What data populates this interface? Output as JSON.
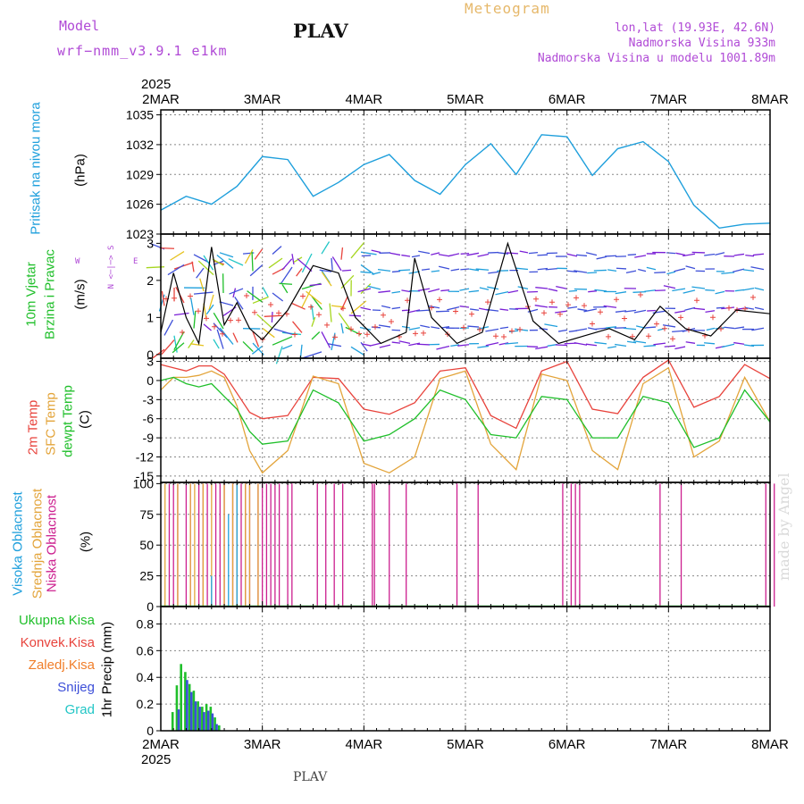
{
  "header": {
    "model_label": "Model",
    "model_name": "wrf−nmm_v3.9.1  e1km",
    "station": "PLAV",
    "product": "Meteogram",
    "lonlat": "lon,lat (19.93E, 42.6N)",
    "elevation": "Nadmorska Visina 933m",
    "model_elevation": "Nadmorska Visina u modelu 1001.89m",
    "footer_station": "PLAV",
    "credit": "made by Angel",
    "year": "2025"
  },
  "colors": {
    "pressure": "#1e9fdc",
    "temp2m": "#e8433c",
    "sfc": "#e3a43a",
    "dewpt": "#1fbf2a",
    "wind_title": "#1fbf2a",
    "low_cloud": "#cc1f8f",
    "mid_cloud": "#e3a43a",
    "high_cloud": "#1e9fdc",
    "total_precip": "#1fbf2a",
    "conv_precip": "#e8433c",
    "frz_precip": "#f07e2a",
    "snow": "#3d4fd8",
    "hail": "#22c6c6"
  },
  "axis_x": {
    "top_labels": [
      "2MAR",
      "3MAR",
      "4MAR",
      "5MAR",
      "6MAR",
      "7MAR",
      "8MAR"
    ],
    "bottom_labels": [
      "2MAR",
      "3MAR",
      "4MAR",
      "5MAR",
      "6MAR",
      "7MAR",
      "8MAR"
    ]
  },
  "panel_labels": {
    "pressure": {
      "title": "Pritisak na nivou mora",
      "unit": "(hPa)"
    },
    "wind": {
      "title1": "10m Vjetar",
      "title2": "Brzina i Pravac",
      "unit": "(m/s)",
      "compass_ns": "N <─|─> S",
      "compass_w": "W",
      "compass_e": "E"
    },
    "temp": {
      "t1": "2m Temp",
      "t2": "SFC Temp",
      "t3": "dewpt Temp",
      "unit": "(C)"
    },
    "cloud": {
      "c1": "Visoka Oblacnost",
      "c2": "Srednja Oblacnost",
      "c3": "Niska Oblacnost",
      "unit": "(%)"
    },
    "precip": {
      "p1": "Ukupna Kisa",
      "p2": "Konvek.Kisa",
      "p3": "Zaledj.Kisa",
      "p4": "Snijeg",
      "p5": "Grad",
      "unit": "1hr Precip (mm)"
    }
  },
  "chart_data": [
    {
      "type": "line",
      "name": "pressure",
      "ylim": [
        1023,
        1035.5
      ],
      "yticks": [
        1023,
        1026,
        1029,
        1032,
        1035
      ],
      "x_unit": "hours from 2MAR 00",
      "x": [
        0,
        6,
        12,
        18,
        24,
        30,
        36,
        42,
        48,
        54,
        60,
        66,
        72,
        78,
        84,
        90,
        96,
        102,
        108,
        114,
        120,
        126,
        132,
        138,
        144
      ],
      "values": [
        1025.4,
        1026.8,
        1026.0,
        1027.8,
        1030.8,
        1030.5,
        1026.8,
        1028.2,
        1030.0,
        1031.0,
        1028.4,
        1027.0,
        1030.0,
        1032.1,
        1029.0,
        1033.0,
        1032.8,
        1028.9,
        1031.6,
        1032.3,
        1030.3,
        1025.9,
        1023.6,
        1024.0,
        1024.1
      ]
    },
    {
      "type": "line",
      "name": "wind_speed",
      "ylim": [
        -0.1,
        3.25
      ],
      "yticks": [
        0,
        1,
        2,
        3
      ],
      "x": [
        0,
        3,
        6,
        9,
        12,
        15,
        18,
        21,
        24,
        30,
        36,
        42,
        46,
        52,
        58,
        60,
        64,
        70,
        76,
        82,
        88,
        94,
        100,
        106,
        112,
        118,
        124,
        130,
        136,
        144
      ],
      "values": [
        0.6,
        2.2,
        1.0,
        0.3,
        2.9,
        0.8,
        1.4,
        0.7,
        0.4,
        1.2,
        2.4,
        2.2,
        1.0,
        0.3,
        0.6,
        2.6,
        1.0,
        0.3,
        0.6,
        3.0,
        0.9,
        0.3,
        0.5,
        0.7,
        0.4,
        1.3,
        0.7,
        0.5,
        1.2,
        1.1
      ]
    },
    {
      "type": "line",
      "name": "temperature",
      "ylim": [
        -16,
        3.5
      ],
      "yticks": [
        3,
        0,
        -3,
        -6,
        -9,
        -12,
        -15
      ],
      "x": [
        0,
        3,
        6,
        9,
        12,
        15,
        18,
        21,
        24,
        30,
        36,
        42,
        48,
        54,
        60,
        66,
        72,
        78,
        84,
        90,
        96,
        102,
        108,
        114,
        120,
        126,
        132,
        138,
        144
      ],
      "series": [
        {
          "name": "2m Temp",
          "values": [
            2.5,
            2.0,
            1.5,
            2.3,
            2.3,
            1.0,
            -2.0,
            -5.0,
            -6.0,
            -5.5,
            0.5,
            0.3,
            -4.5,
            -5.3,
            -3.5,
            1.5,
            2.0,
            -5.5,
            -7.5,
            1.5,
            3.0,
            -4.5,
            -5.2,
            0.5,
            3.2,
            -4.2,
            -2.5,
            2.5,
            0.3
          ]
        },
        {
          "name": "SFC Temp",
          "values": [
            -1.5,
            0.5,
            0.5,
            0.8,
            1.5,
            0.5,
            -4.0,
            -11.0,
            -14.5,
            -11.0,
            0.7,
            -0.5,
            -13.0,
            -14.5,
            -12.0,
            0.3,
            1.5,
            -10.0,
            -14.0,
            1.0,
            0.0,
            -11.0,
            -14.0,
            -0.5,
            2.0,
            -12.0,
            -9.5,
            0.5,
            -6.5
          ]
        },
        {
          "name": "dewpt Temp",
          "values": [
            0.0,
            0.5,
            -0.5,
            -1.0,
            -0.5,
            -2.5,
            -4.5,
            -8.0,
            -10.0,
            -9.5,
            -1.5,
            -3.5,
            -9.5,
            -8.5,
            -6.0,
            -1.5,
            -3.0,
            -8.5,
            -9.0,
            -2.5,
            -3.0,
            -9.0,
            -9.0,
            -2.5,
            -3.5,
            -10.5,
            -9.0,
            -1.5,
            -6.5
          ]
        }
      ]
    },
    {
      "type": "bar",
      "name": "cloud_cover",
      "ylim": [
        0,
        101
      ],
      "yticks": [
        0,
        25,
        50,
        75,
        100
      ],
      "series": [
        {
          "name": "Niska Oblacnost",
          "x": [
            2,
            3,
            4,
            6,
            7,
            9,
            10,
            11,
            13,
            14,
            15,
            17,
            19,
            20,
            21,
            23,
            24,
            25,
            26,
            27,
            28,
            30,
            31,
            37,
            39,
            41,
            43,
            50,
            50.5,
            54,
            58,
            70,
            75,
            95,
            97,
            98,
            99,
            118,
            123,
            143,
            145,
            162,
            169,
            170,
            176
          ],
          "values": [
            100,
            100,
            100,
            100,
            100,
            100,
            100,
            100,
            100,
            100,
            100,
            100,
            100,
            100,
            100,
            100,
            100,
            100,
            100,
            100,
            100,
            100,
            100,
            100,
            100,
            100,
            100,
            100,
            100,
            100,
            100,
            100,
            100,
            100,
            100,
            100,
            100,
            100,
            100,
            100,
            100,
            100,
            100,
            100,
            100
          ]
        },
        {
          "name": "Srednja Oblacnost",
          "x": [
            1,
            4,
            7,
            8,
            10,
            12,
            15,
            17,
            18,
            20,
            21,
            23
          ],
          "values": [
            100,
            100,
            100,
            100,
            100,
            100,
            100,
            100,
            100,
            100,
            100,
            100
          ]
        },
        {
          "name": "Visoka Oblacnost",
          "x": [
            12,
            16,
            18
          ],
          "values": [
            25,
            75,
            100
          ]
        }
      ]
    },
    {
      "type": "bar",
      "name": "precipitation",
      "ylim": [
        0,
        0.93
      ],
      "yticks": [
        0,
        0.2,
        0.4,
        0.6,
        0.8
      ],
      "series": [
        {
          "name": "Ukupna Kisa",
          "x": [
            3,
            4,
            5,
            6,
            7,
            8,
            9,
            10,
            11,
            12,
            13,
            14
          ],
          "values": [
            0.14,
            0.34,
            0.5,
            0.44,
            0.35,
            0.3,
            0.22,
            0.18,
            0.2,
            0.18,
            0.1,
            0.04
          ]
        },
        {
          "name": "Snijeg",
          "x": [
            4,
            6,
            7,
            8,
            9,
            10,
            11,
            12,
            13
          ],
          "values": [
            0.16,
            0.38,
            0.29,
            0.22,
            0.18,
            0.14,
            0.15,
            0.13,
            0.05
          ]
        }
      ]
    }
  ]
}
